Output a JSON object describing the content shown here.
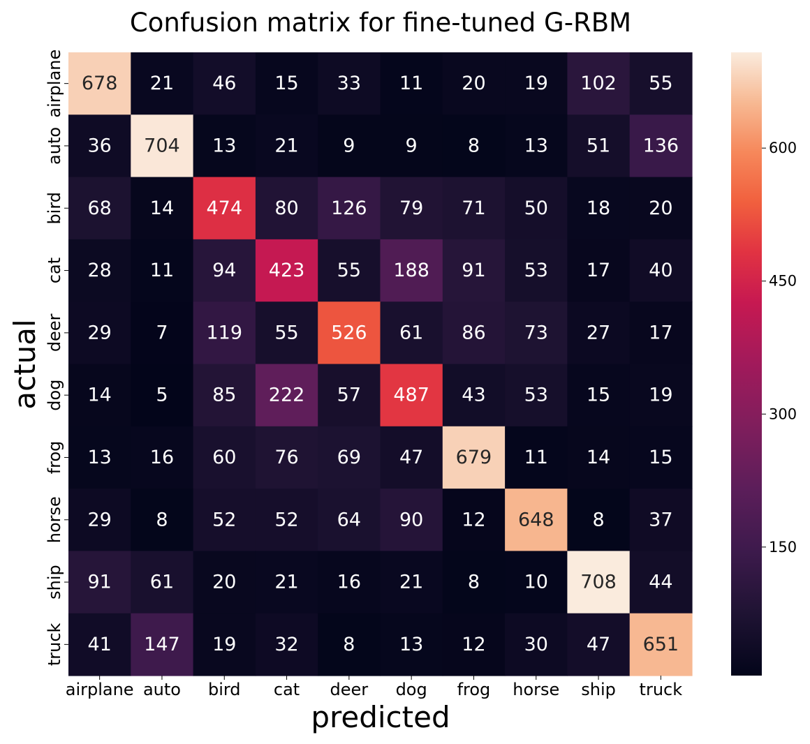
{
  "chart_data": {
    "type": "heatmap",
    "title": "Confusion matrix for fine-tuned G-RBM",
    "xlabel": "predicted",
    "ylabel": "actual",
    "x_categories": [
      "airplane",
      "auto",
      "bird",
      "cat",
      "deer",
      "dog",
      "frog",
      "horse",
      "ship",
      "truck"
    ],
    "y_categories": [
      "airplane",
      "auto",
      "bird",
      "cat",
      "deer",
      "dog",
      "frog",
      "horse",
      "ship",
      "truck"
    ],
    "values": [
      [
        678,
        21,
        46,
        15,
        33,
        11,
        20,
        19,
        102,
        55
      ],
      [
        36,
        704,
        13,
        21,
        9,
        9,
        8,
        13,
        51,
        136
      ],
      [
        68,
        14,
        474,
        80,
        126,
        79,
        71,
        50,
        18,
        20
      ],
      [
        28,
        11,
        94,
        423,
        55,
        188,
        91,
        53,
        17,
        40
      ],
      [
        29,
        7,
        119,
        55,
        526,
        61,
        86,
        73,
        27,
        17
      ],
      [
        14,
        5,
        85,
        222,
        57,
        487,
        43,
        53,
        15,
        19
      ],
      [
        13,
        16,
        60,
        76,
        69,
        47,
        679,
        11,
        14,
        15
      ],
      [
        29,
        8,
        52,
        52,
        64,
        90,
        12,
        648,
        8,
        37
      ],
      [
        91,
        61,
        20,
        21,
        16,
        21,
        8,
        10,
        708,
        44
      ],
      [
        41,
        147,
        19,
        32,
        8,
        13,
        12,
        30,
        47,
        651
      ]
    ],
    "colorbar": {
      "ticks": [
        150,
        300,
        450,
        600
      ],
      "vmin": 5,
      "vmax": 708,
      "colormap": "rocket"
    }
  }
}
